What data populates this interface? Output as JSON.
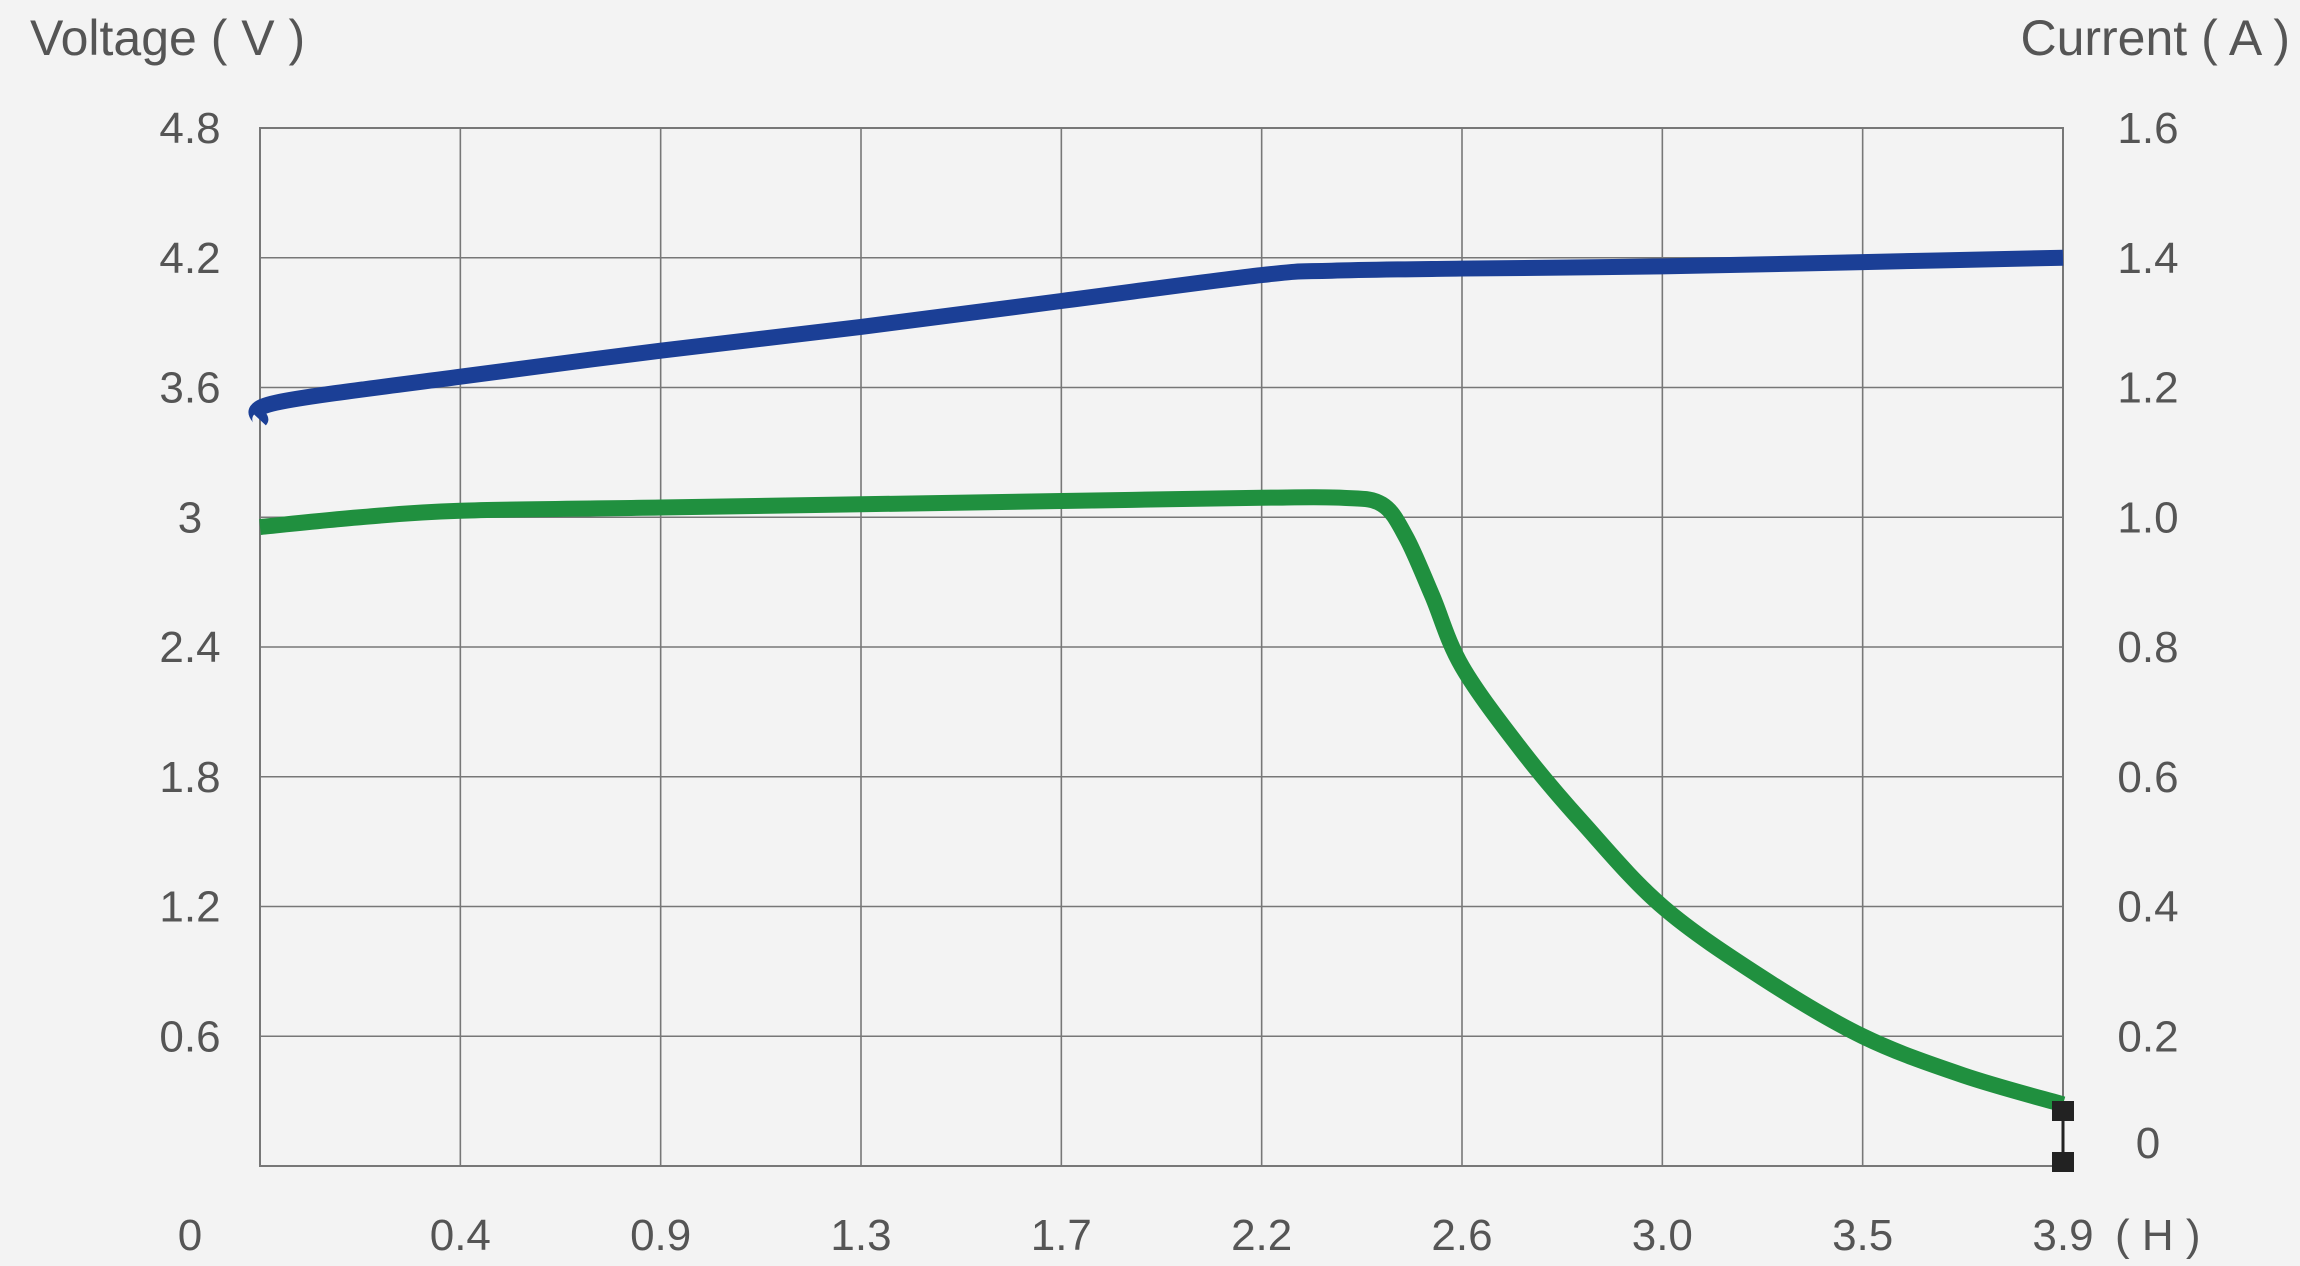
{
  "chart_data": {
    "type": "line",
    "left_axis_title": "Voltage ( V )",
    "right_axis_title": "Current ( A )",
    "x_unit_label": "( H )",
    "x_origin_label": "0",
    "x_tick_labels": [
      "0.4",
      "0.9",
      "1.3",
      "1.7",
      "2.2",
      "2.6",
      "3.0",
      "3.5",
      "3.9"
    ],
    "y_left_ticks": [
      "4.8",
      "4.2",
      "3.6",
      "3",
      "2.4",
      "1.8",
      "1.2",
      "0.6"
    ],
    "y_left_lim": [
      0,
      4.8
    ],
    "y_right_ticks": [
      "1.6",
      "1.4",
      "1.2",
      "1.0",
      "0.8",
      "0.6",
      "0.4",
      "0.2",
      "0"
    ],
    "y_right_lim": [
      0,
      1.6
    ],
    "x_lim": [
      0,
      9
    ],
    "x_scale": "categorical (evenly spaced labels)",
    "grid": true,
    "series": [
      {
        "axis": "left",
        "color": "#1b3f96",
        "points": [
          [
            0,
            3.45
          ],
          [
            0.08,
            3.53
          ],
          [
            1,
            3.65
          ],
          [
            2,
            3.77
          ],
          [
            3,
            3.88
          ],
          [
            4,
            4.0
          ],
          [
            5.0,
            4.12
          ],
          [
            5.35,
            4.14
          ],
          [
            6,
            4.15
          ],
          [
            7,
            4.16
          ],
          [
            8,
            4.18
          ],
          [
            9,
            4.2
          ]
        ]
      },
      {
        "axis": "right",
        "color": "#20903f",
        "points": [
          [
            0,
            0.985
          ],
          [
            0.5,
            1.0
          ],
          [
            1,
            1.01
          ],
          [
            2,
            1.015
          ],
          [
            3,
            1.02
          ],
          [
            4,
            1.025
          ],
          [
            5,
            1.03
          ],
          [
            5.4,
            1.03
          ],
          [
            5.6,
            1.02
          ],
          [
            5.72,
            0.97
          ],
          [
            5.85,
            0.88
          ],
          [
            6,
            0.77
          ],
          [
            6.3,
            0.64
          ],
          [
            6.6,
            0.53
          ],
          [
            7,
            0.4
          ],
          [
            7.5,
            0.29
          ],
          [
            8,
            0.2
          ],
          [
            8.5,
            0.14
          ],
          [
            9,
            0.095
          ]
        ]
      }
    ],
    "marker_icon": "black-square-markers"
  }
}
